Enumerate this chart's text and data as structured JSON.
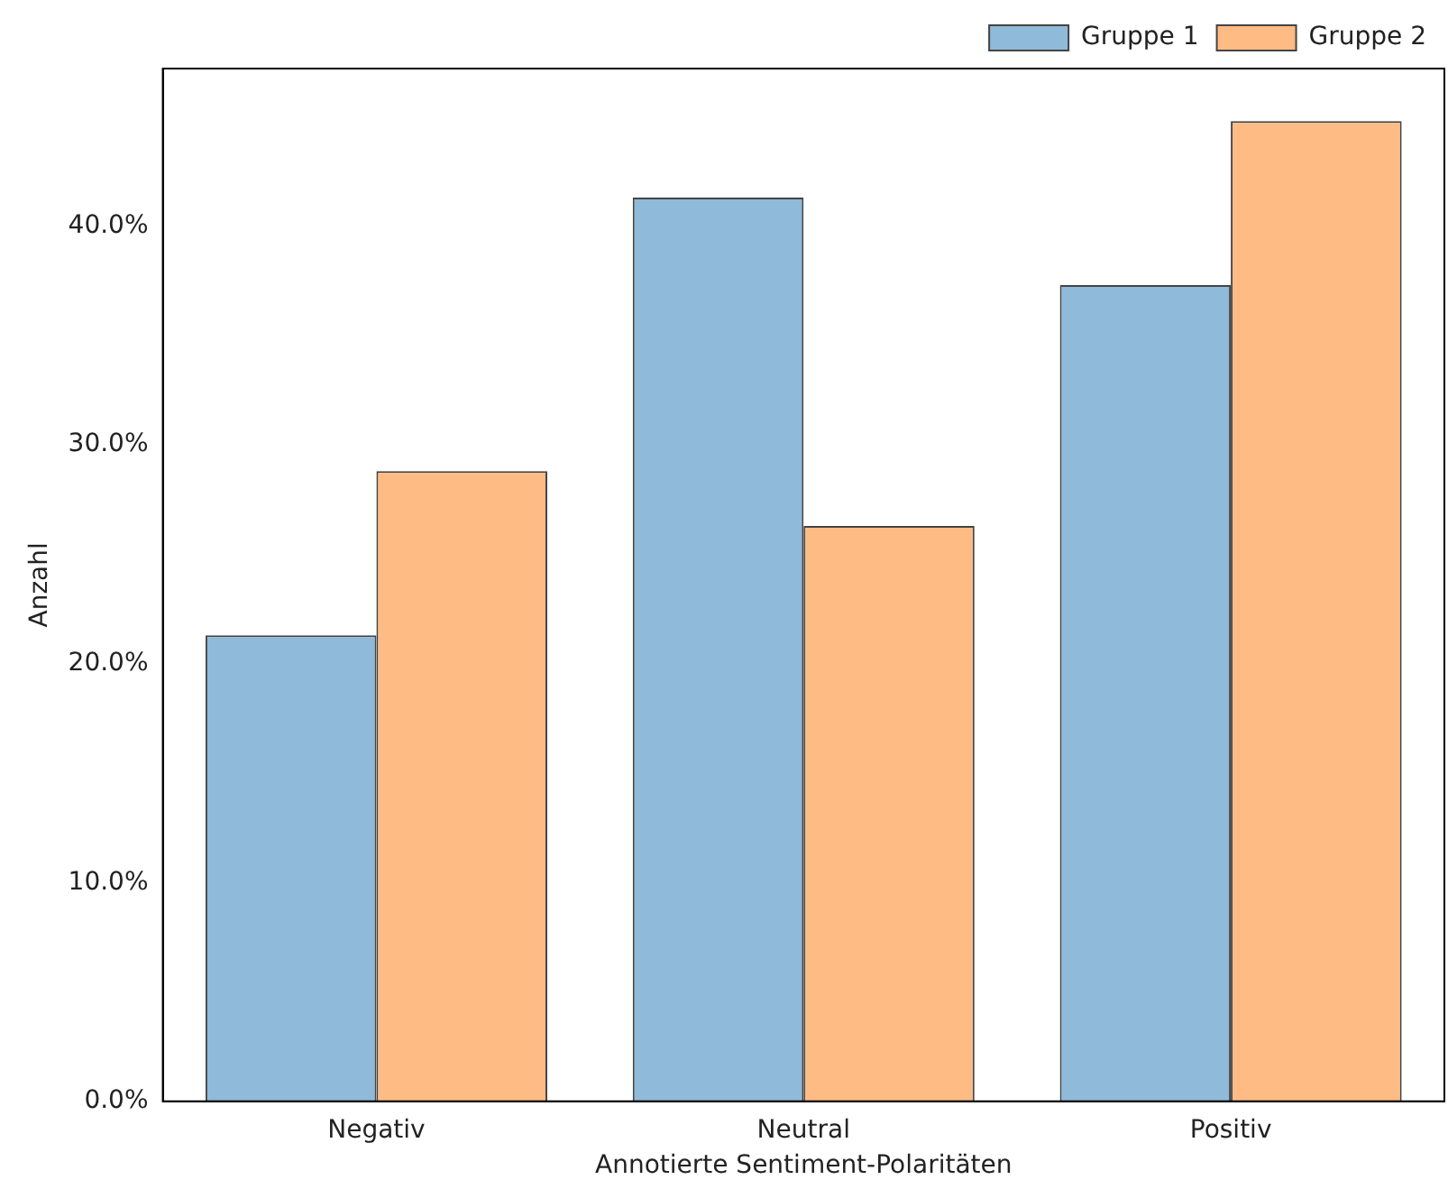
{
  "chart_data": {
    "type": "bar",
    "xlabel": "Annotierte Sentiment-Polaritäten",
    "ylabel": "Anzahl",
    "categories": [
      "Negativ",
      "Neutral",
      "Positiv"
    ],
    "series": [
      {
        "name": "Gruppe 1",
        "color": "#8fbad9",
        "values": [
          21.3,
          41.3,
          37.3
        ]
      },
      {
        "name": "Gruppe 2",
        "color": "#ffbb84",
        "values": [
          28.8,
          26.3,
          44.8
        ]
      }
    ],
    "ylim": [
      0,
      47.2
    ],
    "yticks": [
      {
        "value": 0,
        "label": "0.0%"
      },
      {
        "value": 10,
        "label": "10.0%"
      },
      {
        "value": 20,
        "label": "20.0%"
      },
      {
        "value": 30,
        "label": "30.0%"
      },
      {
        "value": 40,
        "label": "40.0%"
      }
    ],
    "grid": false,
    "legend": "top right"
  }
}
